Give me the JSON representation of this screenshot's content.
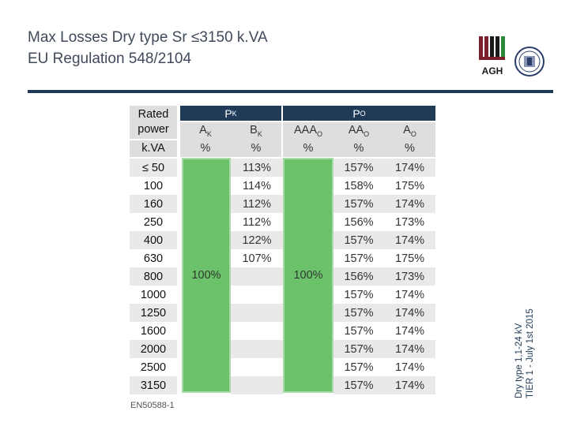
{
  "title": {
    "line1": "Max Losses Dry type Sr ≤3150 k.VA",
    "line2": "EU Regulation 548/2104"
  },
  "logos": {
    "agh_text": "AGH"
  },
  "side_note": {
    "line1": "Dry type 1,1-24 kV",
    "line2": "TIER 1 - July 1st 2015"
  },
  "table": {
    "header": {
      "rated_power": "Rated power",
      "pk": "PK",
      "po": "PO",
      "unit_kva": "k.VA",
      "ak": "AK",
      "bk": "BK",
      "aaao": "AAAO",
      "aao": "AAO",
      "ao": "AO",
      "percent": "%"
    },
    "ak_value": "100%",
    "aaao_value": "100%",
    "rows": [
      {
        "power": "≤ 50",
        "bk": "113%",
        "aao": "157%",
        "ao": "174%"
      },
      {
        "power": "100",
        "bk": "114%",
        "aao": "158%",
        "ao": "175%"
      },
      {
        "power": "160",
        "bk": "112%",
        "aao": "157%",
        "ao": "174%"
      },
      {
        "power": "250",
        "bk": "112%",
        "aao": "156%",
        "ao": "173%"
      },
      {
        "power": "400",
        "bk": "122%",
        "aao": "157%",
        "ao": "174%"
      },
      {
        "power": "630",
        "bk": "107%",
        "aao": "157%",
        "ao": "175%"
      },
      {
        "power": "800",
        "bk": "",
        "aao": "156%",
        "ao": "173%"
      },
      {
        "power": "1000",
        "bk": "",
        "aao": "157%",
        "ao": "174%"
      },
      {
        "power": "1250",
        "bk": "",
        "aao": "157%",
        "ao": "174%"
      },
      {
        "power": "1600",
        "bk": "",
        "aao": "157%",
        "ao": "174%"
      },
      {
        "power": "2000",
        "bk": "",
        "aao": "157%",
        "ao": "174%"
      },
      {
        "power": "2500",
        "bk": "",
        "aao": "157%",
        "ao": "174%"
      },
      {
        "power": "3150",
        "bk": "",
        "aao": "157%",
        "ao": "174%"
      }
    ]
  },
  "footnote": "EN50588-1",
  "colors": {
    "header_bg": "#1f3b58",
    "green": "#6bc26b",
    "row_light": "#e9e9e9",
    "row_white": "#ffffff"
  }
}
